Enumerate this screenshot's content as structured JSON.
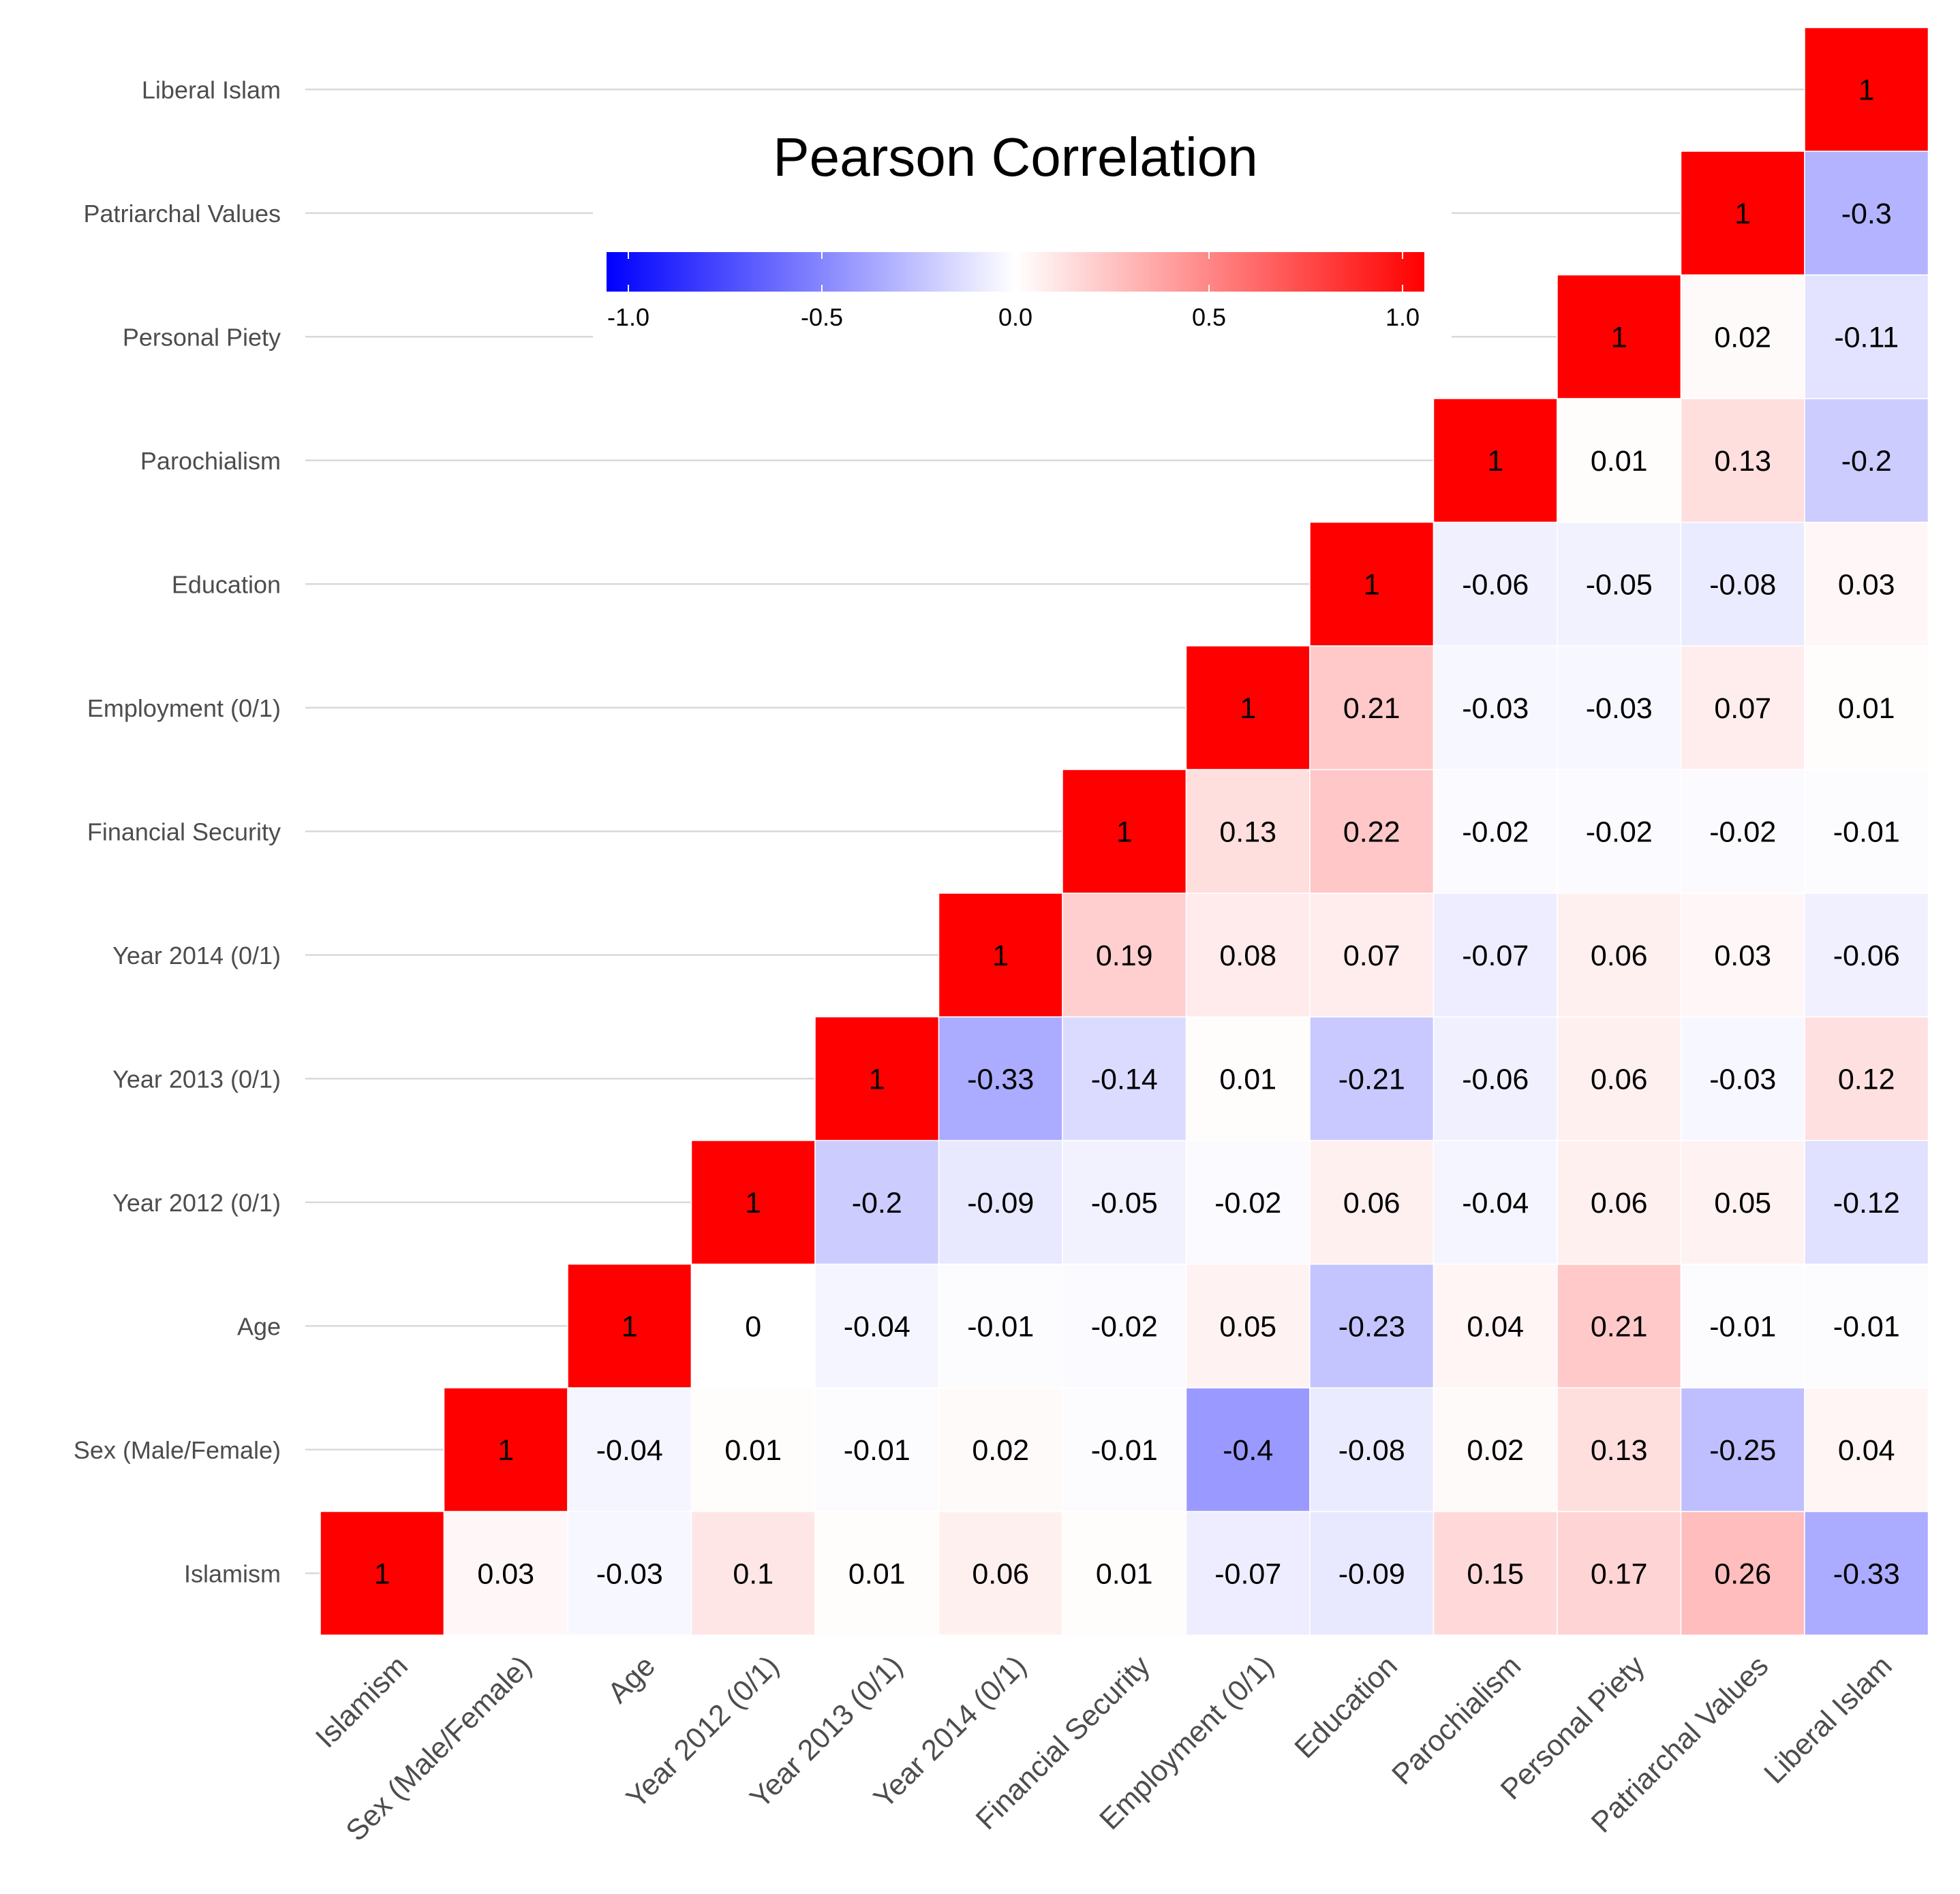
{
  "chart_data": {
    "type": "heatmap",
    "title": "",
    "xlabel": "",
    "ylabel": "",
    "variables": [
      "Islamism",
      "Sex (Male/Female)",
      "Age",
      "Year 2012 (0/1)",
      "Year 2013 (0/1)",
      "Year 2014 (0/1)",
      "Financial Security",
      "Employment (0/1)",
      "Education",
      "Parochialism",
      "Personal Piety",
      "Patriarchal Values",
      "Liberal Islam"
    ],
    "rows": [
      {
        "row": "Islamism",
        "values": [
          1,
          0.03,
          -0.03,
          0.1,
          0.01,
          0.06,
          0.01,
          -0.07,
          -0.09,
          0.15,
          0.17,
          0.26,
          -0.33
        ]
      },
      {
        "row": "Sex (Male/Female)",
        "values": [
          null,
          1,
          -0.04,
          0.01,
          -0.01,
          0.02,
          -0.01,
          -0.4,
          -0.08,
          0.02,
          0.13,
          -0.25,
          0.04
        ]
      },
      {
        "row": "Age",
        "values": [
          null,
          null,
          1,
          0,
          -0.04,
          -0.01,
          -0.02,
          0.05,
          -0.23,
          0.04,
          0.21,
          -0.01,
          -0.01
        ]
      },
      {
        "row": "Year 2012 (0/1)",
        "values": [
          null,
          null,
          null,
          1,
          -0.2,
          -0.09,
          -0.05,
          -0.02,
          0.06,
          -0.04,
          0.06,
          0.05,
          -0.12
        ]
      },
      {
        "row": "Year 2013 (0/1)",
        "values": [
          null,
          null,
          null,
          null,
          1,
          -0.33,
          -0.14,
          0.01,
          -0.21,
          -0.06,
          0.06,
          -0.03,
          0.12
        ]
      },
      {
        "row": "Year 2014 (0/1)",
        "values": [
          null,
          null,
          null,
          null,
          null,
          1,
          0.19,
          0.08,
          0.07,
          -0.07,
          0.06,
          0.03,
          -0.06
        ]
      },
      {
        "row": "Financial Security",
        "values": [
          null,
          null,
          null,
          null,
          null,
          null,
          1,
          0.13,
          0.22,
          -0.02,
          -0.02,
          -0.02,
          -0.01
        ]
      },
      {
        "row": "Employment (0/1)",
        "values": [
          null,
          null,
          null,
          null,
          null,
          null,
          null,
          1,
          0.21,
          -0.03,
          -0.03,
          0.07,
          0.01
        ]
      },
      {
        "row": "Education",
        "values": [
          null,
          null,
          null,
          null,
          null,
          null,
          null,
          null,
          1,
          -0.06,
          -0.05,
          -0.08,
          0.03
        ]
      },
      {
        "row": "Parochialism",
        "values": [
          null,
          null,
          null,
          null,
          null,
          null,
          null,
          null,
          null,
          1,
          0.01,
          0.13,
          -0.2
        ]
      },
      {
        "row": "Personal Piety",
        "values": [
          null,
          null,
          null,
          null,
          null,
          null,
          null,
          null,
          null,
          null,
          1,
          0.02,
          -0.11
        ]
      },
      {
        "row": "Patriarchal Values",
        "values": [
          null,
          null,
          null,
          null,
          null,
          null,
          null,
          null,
          null,
          null,
          null,
          1,
          -0.3
        ]
      },
      {
        "row": "Liberal Islam",
        "values": [
          null,
          null,
          null,
          null,
          null,
          null,
          null,
          null,
          null,
          null,
          null,
          null,
          1
        ]
      }
    ],
    "legend": {
      "title": "Pearson Correlation",
      "range": [
        -1,
        1
      ],
      "ticks": [
        "-1.0",
        "-0.5",
        "0.0",
        "0.5",
        "1.0"
      ],
      "tick_values": [
        -1,
        -0.5,
        0,
        0.5,
        1
      ],
      "colors": {
        "low": "#0000ff",
        "mid": "#ffffff",
        "high": "#ff0000"
      },
      "placement": "top-center"
    },
    "grid": true
  }
}
